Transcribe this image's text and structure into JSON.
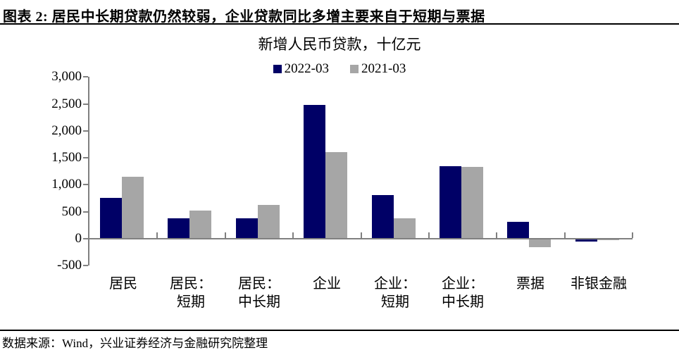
{
  "header": {
    "title": "图表 2: 居民中长期贷款仍然较弱，企业贷款同比多增主要来自于短期与票据"
  },
  "chart_data": {
    "type": "bar",
    "title": "新增人民币贷款，十亿元",
    "legend_position": "top-center",
    "grid": false,
    "ylim": [
      -500,
      3000
    ],
    "ytick_step": 500,
    "yticks": [
      {
        "v": 3000,
        "label": "3,000"
      },
      {
        "v": 2500,
        "label": "2,500"
      },
      {
        "v": 2000,
        "label": "2,000"
      },
      {
        "v": 1500,
        "label": "1,500"
      },
      {
        "v": 1000,
        "label": "1,000"
      },
      {
        "v": 500,
        "label": "500"
      },
      {
        "v": 0,
        "label": "0"
      },
      {
        "v": -500,
        "label": "-500"
      }
    ],
    "categories": [
      "居民",
      "居民：短期",
      "居民：中长期",
      "企业",
      "企业：短期",
      "企业：中长期",
      "票据",
      "非银金融"
    ],
    "category_label_lines": [
      [
        "居民"
      ],
      [
        "居民：",
        "短期"
      ],
      [
        "居民：",
        "中长期"
      ],
      [
        "企业"
      ],
      [
        "企业：",
        "短期"
      ],
      [
        "企业：",
        "中长期"
      ],
      [
        "票据"
      ],
      [
        "非银金融"
      ]
    ],
    "series": [
      {
        "name": "2022-03",
        "color": "#000066",
        "values": [
          755,
          385,
          375,
          2480,
          810,
          1350,
          315,
          -50
        ]
      },
      {
        "name": "2021-03",
        "color": "#A6A6A6",
        "values": [
          1145,
          525,
          625,
          1600,
          375,
          1330,
          -160,
          -25
        ]
      }
    ],
    "axis_color": "#808080"
  },
  "footer": {
    "source": "数据来源：Wind，兴业证券经济与金融研究院整理"
  }
}
